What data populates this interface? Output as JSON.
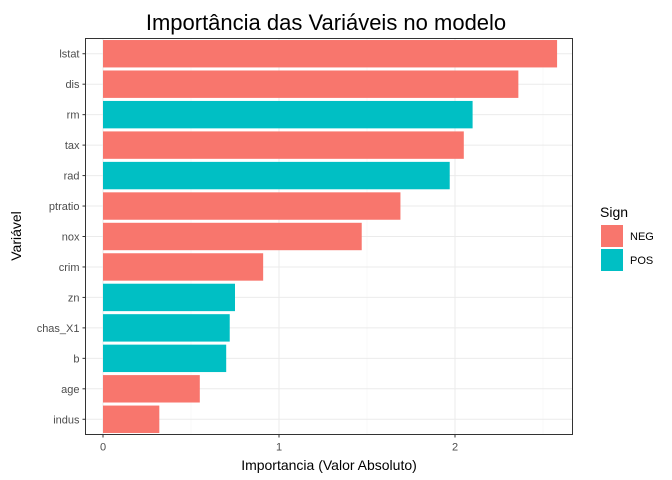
{
  "chart_data": {
    "type": "bar",
    "orientation": "horizontal",
    "title": "Importância das Variáveis no modelo",
    "xlabel": "Importancia (Valor Absoluto)",
    "ylabel": "Variável",
    "xlim": [
      0,
      2.65
    ],
    "xticks": [
      0,
      1,
      2
    ],
    "grid": true,
    "legend": {
      "title": "Sign",
      "position": "right",
      "entries": [
        {
          "name": "NEG",
          "color": "#F8766D"
        },
        {
          "name": "POS",
          "color": "#00BFC4"
        }
      ]
    },
    "categories": [
      "lstat",
      "dis",
      "rm",
      "tax",
      "rad",
      "ptratio",
      "nox",
      "crim",
      "zn",
      "chas_X1",
      "b",
      "age",
      "indus"
    ],
    "values": [
      2.58,
      2.36,
      2.1,
      2.05,
      1.97,
      1.69,
      1.47,
      0.91,
      0.75,
      0.72,
      0.7,
      0.55,
      0.32
    ],
    "signs": [
      "NEG",
      "NEG",
      "POS",
      "NEG",
      "POS",
      "NEG",
      "NEG",
      "NEG",
      "POS",
      "POS",
      "POS",
      "NEG",
      "NEG"
    ]
  }
}
